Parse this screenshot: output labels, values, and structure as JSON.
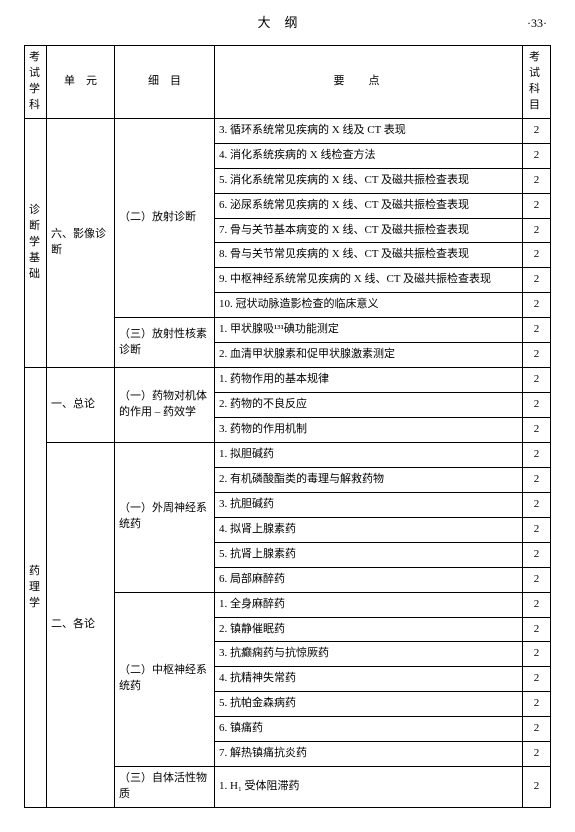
{
  "header": {
    "title": "大纲",
    "page_number": "·33·"
  },
  "columns": {
    "subject": "考试学科",
    "unit": "单　元",
    "detail": "细　目",
    "point": "要点",
    "num": "考试科目"
  },
  "subjects": [
    {
      "name": "诊断学基础",
      "units": [
        {
          "name": "六、影像诊断",
          "details": [
            {
              "name": "（二）放射诊断",
              "points": [
                {
                  "text": "3. 循环系统常见疾病的 X 线及 CT 表现",
                  "num": "2"
                },
                {
                  "text": "4. 消化系统疾病的 X 线检查方法",
                  "num": "2"
                },
                {
                  "text": "5. 消化系统常见疾病的 X 线、CT 及磁共振检查表现",
                  "num": "2"
                },
                {
                  "text": "6. 泌尿系统常见疾病的 X 线、CT 及磁共振检查表现",
                  "num": "2"
                },
                {
                  "text": "7. 骨与关节基本病变的 X 线、CT 及磁共振检查表现",
                  "num": "2"
                },
                {
                  "text": "8. 骨与关节常见疾病的 X 线、CT 及磁共振检查表现",
                  "num": "2"
                },
                {
                  "text": "9. 中枢神经系统常见疾病的 X 线、CT 及磁共振检查表现",
                  "num": "2"
                },
                {
                  "text": "10. 冠状动脉造影检查的临床意义",
                  "num": "2"
                }
              ]
            },
            {
              "name": "（三）放射性核素诊断",
              "points": [
                {
                  "text": "1. 甲状腺吸¹³¹碘功能测定",
                  "num": "2"
                },
                {
                  "text": "2. 血清甲状腺素和促甲状腺激素测定",
                  "num": "2"
                }
              ]
            }
          ]
        }
      ]
    },
    {
      "name": "药理学",
      "units": [
        {
          "name": "一、总论",
          "details": [
            {
              "name": "（一）药物对机体的作用 – 药效学",
              "points": [
                {
                  "text": "1. 药物作用的基本规律",
                  "num": "2"
                },
                {
                  "text": "2. 药物的不良反应",
                  "num": "2"
                },
                {
                  "text": "3. 药物的作用机制",
                  "num": "2"
                }
              ]
            }
          ]
        },
        {
          "name": "二、各论",
          "details": [
            {
              "name": "（一）外周神经系统药",
              "points": [
                {
                  "text": "1. 拟胆碱药",
                  "num": "2"
                },
                {
                  "text": "2. 有机磷酸酯类的毒理与解救药物",
                  "num": "2"
                },
                {
                  "text": "3. 抗胆碱药",
                  "num": "2"
                },
                {
                  "text": "4. 拟肾上腺素药",
                  "num": "2"
                },
                {
                  "text": "5. 抗肾上腺素药",
                  "num": "2"
                },
                {
                  "text": "6. 局部麻醉药",
                  "num": "2"
                }
              ]
            },
            {
              "name": "（二）中枢神经系统药",
              "points": [
                {
                  "text": "1. 全身麻醉药",
                  "num": "2"
                },
                {
                  "text": "2. 镇静催眠药",
                  "num": "2"
                },
                {
                  "text": "3. 抗癫痫药与抗惊厥药",
                  "num": "2"
                },
                {
                  "text": "4. 抗精神失常药",
                  "num": "2"
                },
                {
                  "text": "5. 抗帕金森病药",
                  "num": "2"
                },
                {
                  "text": "6. 镇痛药",
                  "num": "2"
                },
                {
                  "text": "7. 解热镇痛抗炎药",
                  "num": "2"
                }
              ]
            },
            {
              "name": "（三）自体活性物质",
              "points": [
                {
                  "text": "1. H₁ 受体阻滞药",
                  "num": "2"
                }
              ]
            }
          ]
        }
      ]
    }
  ]
}
